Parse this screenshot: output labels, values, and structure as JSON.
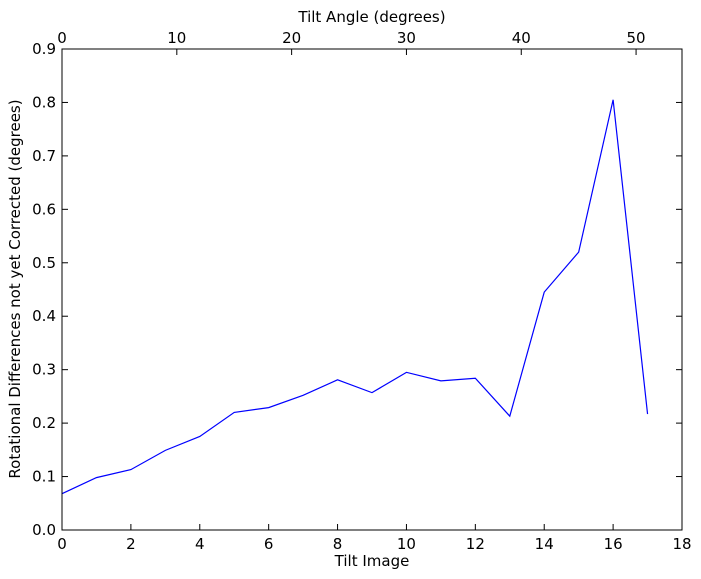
{
  "chart_data": {
    "type": "line",
    "title": "",
    "xlabel": "Tilt Image",
    "ylabel": "Rotational Differences not yet Corrected (degrees)",
    "xlim": [
      0,
      18
    ],
    "ylim": [
      0.0,
      0.9
    ],
    "x_ticks": [
      "0",
      "2",
      "4",
      "6",
      "8",
      "10",
      "12",
      "14",
      "16",
      "18"
    ],
    "y_ticks": [
      "0.0",
      "0.1",
      "0.2",
      "0.3",
      "0.4",
      "0.5",
      "0.6",
      "0.7",
      "0.8",
      "0.9"
    ],
    "secondary_x": {
      "label": "Tilt Angle (degrees)",
      "range": [
        0,
        54
      ],
      "ticks": [
        "0",
        "10",
        "20",
        "30",
        "40",
        "50"
      ]
    },
    "grid": false,
    "series": [
      {
        "color": "#0000ff",
        "x": [
          0,
          1,
          2,
          3,
          4,
          5,
          6,
          7,
          8,
          9,
          10,
          11,
          12,
          13,
          14,
          15,
          16,
          17
        ],
        "y": [
          0.068,
          0.098,
          0.113,
          0.149,
          0.175,
          0.22,
          0.229,
          0.252,
          0.281,
          0.257,
          0.295,
          0.279,
          0.284,
          0.213,
          0.445,
          0.52,
          0.805,
          0.217
        ]
      }
    ]
  }
}
